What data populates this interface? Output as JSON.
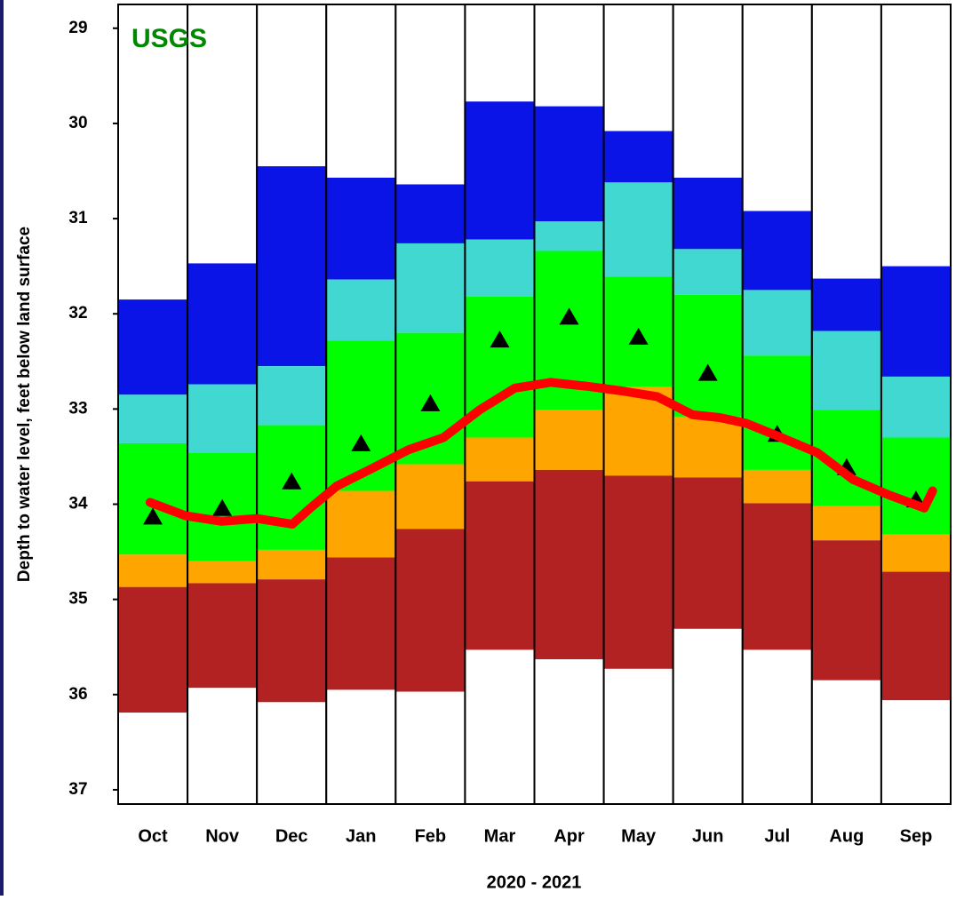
{
  "chart_data": {
    "type": "bar",
    "title": "USGS",
    "title_color": "#008800",
    "ylabel": "Depth to water level, feet below land surface",
    "xlabel": "2020 - 2021",
    "categories": [
      "Oct",
      "Nov",
      "Dec",
      "Jan",
      "Feb",
      "Mar",
      "Apr",
      "May",
      "Jun",
      "Jul",
      "Aug",
      "Sep"
    ],
    "ylim": [
      28.75,
      37.15
    ],
    "yticks": [
      29,
      30,
      31,
      32,
      33,
      34,
      35,
      36,
      37
    ],
    "inverted_y": true,
    "background": "#ffffff",
    "series": [
      {
        "color": "#0a14e6",
        "values": [
          31.85,
          31.47,
          30.45,
          30.57,
          30.64,
          29.77,
          29.82,
          30.08,
          30.57,
          30.92,
          31.63,
          31.5
        ]
      },
      {
        "color": "#40d8d0",
        "values": [
          32.85,
          32.74,
          32.55,
          31.64,
          31.26,
          31.22,
          31.03,
          30.62,
          31.32,
          31.75,
          32.18,
          32.66
        ]
      },
      {
        "color": "#00ff00",
        "values": [
          33.36,
          33.46,
          33.17,
          32.28,
          32.2,
          31.82,
          31.34,
          31.61,
          31.8,
          32.44,
          33.01,
          33.3
        ]
      },
      {
        "color": "#ffa500",
        "values": [
          34.53,
          34.6,
          34.48,
          33.86,
          33.58,
          33.3,
          33.01,
          32.77,
          33.08,
          33.64,
          34.02,
          34.32
        ]
      },
      {
        "color": "#b22222",
        "values": [
          34.87,
          34.83,
          34.79,
          34.56,
          34.26,
          33.76,
          33.64,
          33.7,
          33.72,
          33.99,
          34.38,
          34.71
        ]
      },
      {
        "color": "#ffffff",
        "values": [
          36.19,
          35.93,
          36.08,
          35.95,
          35.97,
          35.53,
          35.63,
          35.73,
          35.31,
          35.53,
          35.85,
          36.06
        ]
      }
    ],
    "medians": {
      "color": "#000000",
      "values": [
        34.13,
        34.04,
        33.76,
        33.36,
        32.94,
        32.27,
        32.03,
        32.24,
        32.62,
        33.26,
        33.61,
        33.95
      ]
    },
    "line": {
      "type": "line",
      "color": "#ff0000",
      "x": [
        -0.04,
        0.47,
        0.99,
        1.5,
        2.01,
        2.27,
        2.65,
        3.17,
        3.68,
        4.19,
        4.71,
        5.22,
        5.73,
        6.24,
        6.76,
        7.27,
        7.78,
        8.17,
        8.55,
        9.06,
        9.58,
        10.09,
        10.6,
        11.12,
        11.24
      ],
      "values": [
        33.98,
        34.12,
        34.18,
        34.15,
        34.21,
        34.04,
        33.81,
        33.62,
        33.43,
        33.3,
        33.01,
        32.78,
        32.72,
        32.76,
        32.81,
        32.87,
        33.06,
        33.09,
        33.15,
        33.3,
        33.46,
        33.74,
        33.9,
        34.04,
        33.86
      ]
    }
  }
}
